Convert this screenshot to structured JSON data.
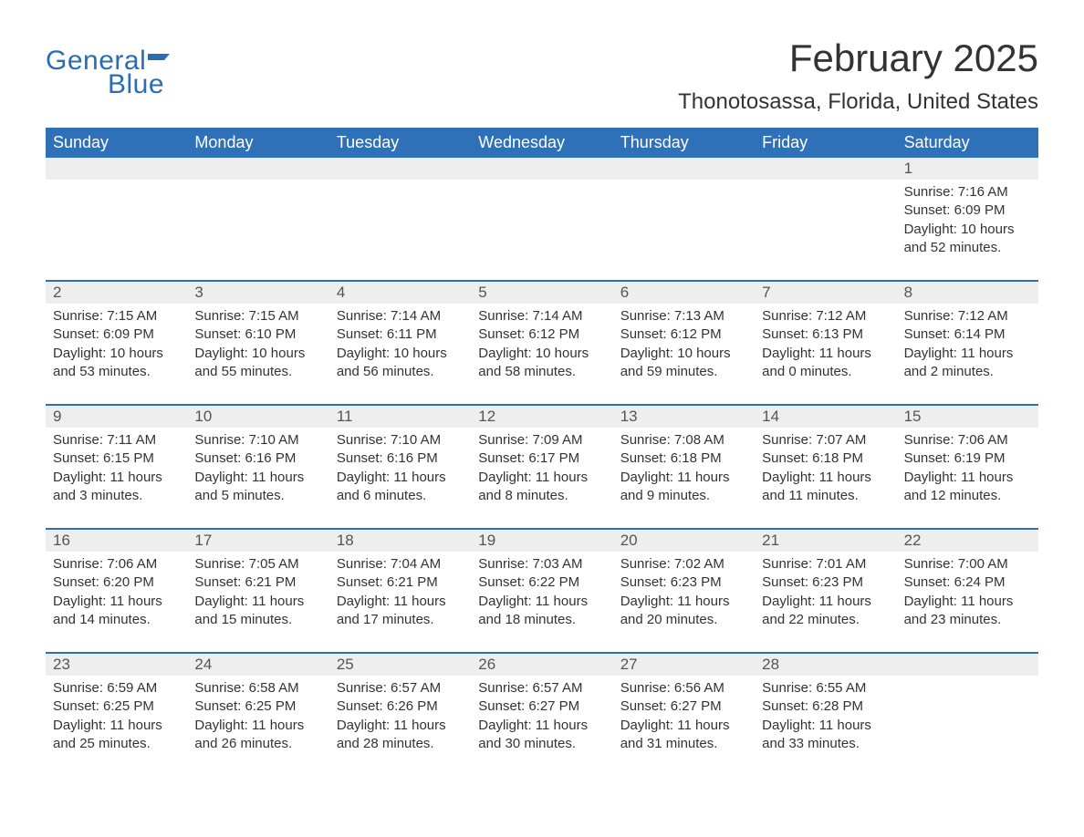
{
  "logo": {
    "general": "General",
    "blue": "Blue",
    "flag_color": "#2a6db5"
  },
  "title": "February 2025",
  "location": "Thonotosassa, Florida, United States",
  "colors": {
    "header_bg": "#2f71b8",
    "header_text": "#ffffff",
    "row_divider": "#2f71b8",
    "daynum_bg": "#eeeeee",
    "body_text": "#333333",
    "page_bg": "#ffffff"
  },
  "typography": {
    "title_fontsize_pt": 32,
    "location_fontsize_pt": 18,
    "dow_fontsize_pt": 14,
    "daynum_fontsize_pt": 13,
    "body_fontsize_pt": 11
  },
  "layout": {
    "columns": 7,
    "rows": 5,
    "aspect": "1188x918"
  },
  "days_of_week": [
    "Sunday",
    "Monday",
    "Tuesday",
    "Wednesday",
    "Thursday",
    "Friday",
    "Saturday"
  ],
  "weeks": [
    [
      {
        "n": "",
        "lines": []
      },
      {
        "n": "",
        "lines": []
      },
      {
        "n": "",
        "lines": []
      },
      {
        "n": "",
        "lines": []
      },
      {
        "n": "",
        "lines": []
      },
      {
        "n": "",
        "lines": []
      },
      {
        "n": "1",
        "lines": [
          "Sunrise: 7:16 AM",
          "Sunset: 6:09 PM",
          "Daylight: 10 hours",
          "and 52 minutes."
        ]
      }
    ],
    [
      {
        "n": "2",
        "lines": [
          "Sunrise: 7:15 AM",
          "Sunset: 6:09 PM",
          "Daylight: 10 hours",
          "and 53 minutes."
        ]
      },
      {
        "n": "3",
        "lines": [
          "Sunrise: 7:15 AM",
          "Sunset: 6:10 PM",
          "Daylight: 10 hours",
          "and 55 minutes."
        ]
      },
      {
        "n": "4",
        "lines": [
          "Sunrise: 7:14 AM",
          "Sunset: 6:11 PM",
          "Daylight: 10 hours",
          "and 56 minutes."
        ]
      },
      {
        "n": "5",
        "lines": [
          "Sunrise: 7:14 AM",
          "Sunset: 6:12 PM",
          "Daylight: 10 hours",
          "and 58 minutes."
        ]
      },
      {
        "n": "6",
        "lines": [
          "Sunrise: 7:13 AM",
          "Sunset: 6:12 PM",
          "Daylight: 10 hours",
          "and 59 minutes."
        ]
      },
      {
        "n": "7",
        "lines": [
          "Sunrise: 7:12 AM",
          "Sunset: 6:13 PM",
          "Daylight: 11 hours",
          "and 0 minutes."
        ]
      },
      {
        "n": "8",
        "lines": [
          "Sunrise: 7:12 AM",
          "Sunset: 6:14 PM",
          "Daylight: 11 hours",
          "and 2 minutes."
        ]
      }
    ],
    [
      {
        "n": "9",
        "lines": [
          "Sunrise: 7:11 AM",
          "Sunset: 6:15 PM",
          "Daylight: 11 hours",
          "and 3 minutes."
        ]
      },
      {
        "n": "10",
        "lines": [
          "Sunrise: 7:10 AM",
          "Sunset: 6:16 PM",
          "Daylight: 11 hours",
          "and 5 minutes."
        ]
      },
      {
        "n": "11",
        "lines": [
          "Sunrise: 7:10 AM",
          "Sunset: 6:16 PM",
          "Daylight: 11 hours",
          "and 6 minutes."
        ]
      },
      {
        "n": "12",
        "lines": [
          "Sunrise: 7:09 AM",
          "Sunset: 6:17 PM",
          "Daylight: 11 hours",
          "and 8 minutes."
        ]
      },
      {
        "n": "13",
        "lines": [
          "Sunrise: 7:08 AM",
          "Sunset: 6:18 PM",
          "Daylight: 11 hours",
          "and 9 minutes."
        ]
      },
      {
        "n": "14",
        "lines": [
          "Sunrise: 7:07 AM",
          "Sunset: 6:18 PM",
          "Daylight: 11 hours",
          "and 11 minutes."
        ]
      },
      {
        "n": "15",
        "lines": [
          "Sunrise: 7:06 AM",
          "Sunset: 6:19 PM",
          "Daylight: 11 hours",
          "and 12 minutes."
        ]
      }
    ],
    [
      {
        "n": "16",
        "lines": [
          "Sunrise: 7:06 AM",
          "Sunset: 6:20 PM",
          "Daylight: 11 hours",
          "and 14 minutes."
        ]
      },
      {
        "n": "17",
        "lines": [
          "Sunrise: 7:05 AM",
          "Sunset: 6:21 PM",
          "Daylight: 11 hours",
          "and 15 minutes."
        ]
      },
      {
        "n": "18",
        "lines": [
          "Sunrise: 7:04 AM",
          "Sunset: 6:21 PM",
          "Daylight: 11 hours",
          "and 17 minutes."
        ]
      },
      {
        "n": "19",
        "lines": [
          "Sunrise: 7:03 AM",
          "Sunset: 6:22 PM",
          "Daylight: 11 hours",
          "and 18 minutes."
        ]
      },
      {
        "n": "20",
        "lines": [
          "Sunrise: 7:02 AM",
          "Sunset: 6:23 PM",
          "Daylight: 11 hours",
          "and 20 minutes."
        ]
      },
      {
        "n": "21",
        "lines": [
          "Sunrise: 7:01 AM",
          "Sunset: 6:23 PM",
          "Daylight: 11 hours",
          "and 22 minutes."
        ]
      },
      {
        "n": "22",
        "lines": [
          "Sunrise: 7:00 AM",
          "Sunset: 6:24 PM",
          "Daylight: 11 hours",
          "and 23 minutes."
        ]
      }
    ],
    [
      {
        "n": "23",
        "lines": [
          "Sunrise: 6:59 AM",
          "Sunset: 6:25 PM",
          "Daylight: 11 hours",
          "and 25 minutes."
        ]
      },
      {
        "n": "24",
        "lines": [
          "Sunrise: 6:58 AM",
          "Sunset: 6:25 PM",
          "Daylight: 11 hours",
          "and 26 minutes."
        ]
      },
      {
        "n": "25",
        "lines": [
          "Sunrise: 6:57 AM",
          "Sunset: 6:26 PM",
          "Daylight: 11 hours",
          "and 28 minutes."
        ]
      },
      {
        "n": "26",
        "lines": [
          "Sunrise: 6:57 AM",
          "Sunset: 6:27 PM",
          "Daylight: 11 hours",
          "and 30 minutes."
        ]
      },
      {
        "n": "27",
        "lines": [
          "Sunrise: 6:56 AM",
          "Sunset: 6:27 PM",
          "Daylight: 11 hours",
          "and 31 minutes."
        ]
      },
      {
        "n": "28",
        "lines": [
          "Sunrise: 6:55 AM",
          "Sunset: 6:28 PM",
          "Daylight: 11 hours",
          "and 33 minutes."
        ]
      },
      {
        "n": "",
        "lines": []
      }
    ]
  ]
}
